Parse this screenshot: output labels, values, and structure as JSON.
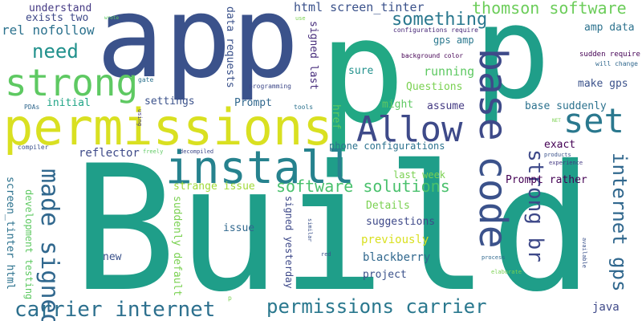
{
  "words": [
    {
      "text": "Build",
      "color": "#1f9e89",
      "vertical": false
    },
    {
      "text": "app",
      "color": "#3b528b",
      "vertical": false
    },
    {
      "text": "p",
      "color": "#22a884",
      "vertical": false
    },
    {
      "text": "p",
      "color": "#1f9e89",
      "vertical": false
    },
    {
      "text": "permissions",
      "color": "#d9e021",
      "vertical": false
    },
    {
      "text": "strong",
      "color": "#5ec962",
      "vertical": false
    },
    {
      "text": "install",
      "color": "#26828e",
      "vertical": false
    },
    {
      "text": "Allow",
      "color": "#3e4a89",
      "vertical": false
    },
    {
      "text": "base",
      "color": "#3e4a89",
      "vertical": true
    },
    {
      "text": "set",
      "color": "#2a788e",
      "vertical": false
    },
    {
      "text": "code",
      "color": "#3b528b",
      "vertical": true
    },
    {
      "text": "strong br",
      "color": "#3e4989",
      "vertical": true
    },
    {
      "text": "made signed",
      "color": "#31688e",
      "vertical": true
    },
    {
      "text": "carrier internet",
      "color": "#2d708e",
      "vertical": false
    },
    {
      "text": "permissions carrier",
      "color": "#2a788e",
      "vertical": false
    },
    {
      "text": "internet gps",
      "color": "#31688e",
      "vertical": true
    },
    {
      "text": "something",
      "color": "#2a788e",
      "vertical": false
    },
    {
      "text": "thomson software",
      "color": "#6ccd5a",
      "vertical": false
    },
    {
      "text": "need",
      "color": "#21918c",
      "vertical": false
    },
    {
      "text": "software solutions",
      "color": "#4ac16d",
      "vertical": false
    },
    {
      "text": "html screen_tinter",
      "color": "#3b528b",
      "vertical": false
    },
    {
      "text": "understand",
      "color": "#443983",
      "vertical": false
    },
    {
      "text": "exists two",
      "color": "#3e4989",
      "vertical": false
    },
    {
      "text": "rel nofollow",
      "color": "#2c728e",
      "vertical": false
    },
    {
      "text": "data requests",
      "color": "#3b528b",
      "vertical": true
    },
    {
      "text": "signed last",
      "color": "#472d7b",
      "vertical": true
    },
    {
      "text": "href",
      "color": "#5ec962",
      "vertical": true
    },
    {
      "text": "gps amp",
      "color": "#2a788e",
      "vertical": false
    },
    {
      "text": "amp data",
      "color": "#2c728e",
      "vertical": false
    },
    {
      "text": "make gps",
      "color": "#3b528b",
      "vertical": false
    },
    {
      "text": "running",
      "color": "#5ec962",
      "vertical": false
    },
    {
      "text": "sure",
      "color": "#21918c",
      "vertical": false
    },
    {
      "text": "Questions",
      "color": "#7ad151",
      "vertical": false
    },
    {
      "text": "might",
      "color": "#5ec962",
      "vertical": false
    },
    {
      "text": "assume",
      "color": "#443a83",
      "vertical": false
    },
    {
      "text": "base suddenly",
      "color": "#2c728e",
      "vertical": false
    },
    {
      "text": "initial",
      "color": "#20a486",
      "vertical": false
    },
    {
      "text": "settings",
      "color": "#3b528b",
      "vertical": false
    },
    {
      "text": "Prompt",
      "color": "#31688e",
      "vertical": false
    },
    {
      "text": "reflector",
      "color": "#3e4a89",
      "vertical": false
    },
    {
      "text": "phone configurations",
      "color": "#2c728e",
      "vertical": false
    },
    {
      "text": "exact",
      "color": "#440154",
      "vertical": false
    },
    {
      "text": "last week",
      "color": "#7ad151",
      "vertical": false
    },
    {
      "text": "Prompt rather",
      "color": "#440154",
      "vertical": false
    },
    {
      "text": "strange issue",
      "color": "#a0da39",
      "vertical": false
    },
    {
      "text": "Details",
      "color": "#7ad151",
      "vertical": false
    },
    {
      "text": "suggestions",
      "color": "#3e4989",
      "vertical": false
    },
    {
      "text": "previously",
      "color": "#d9e021",
      "vertical": false
    },
    {
      "text": "blackberry",
      "color": "#31688e",
      "vertical": false
    },
    {
      "text": "project",
      "color": "#3b528b",
      "vertical": false
    },
    {
      "text": "issue",
      "color": "#31688e",
      "vertical": false
    },
    {
      "text": "new",
      "color": "#3b528b",
      "vertical": false
    },
    {
      "text": "java",
      "color": "#3e4989",
      "vertical": false
    },
    {
      "text": "screen_tinter html",
      "color": "#2c728e",
      "vertical": true
    },
    {
      "text": "development testing",
      "color": "#5ec962",
      "vertical": true
    },
    {
      "text": "suddenly default",
      "color": "#7ad151",
      "vertical": true
    },
    {
      "text": "signed yesterday",
      "color": "#3e4989",
      "vertical": true
    },
    {
      "text": "configurations require",
      "color": "#482878",
      "vertical": false
    },
    {
      "text": "background color",
      "color": "#440154",
      "vertical": false
    },
    {
      "text": "sudden require",
      "color": "#440154",
      "vertical": false
    },
    {
      "text": "will change",
      "color": "#31688e",
      "vertical": false
    },
    {
      "text": "programming",
      "color": "#3e4989",
      "vertical": false
    },
    {
      "text": "tools",
      "color": "#2c728e",
      "vertical": false
    },
    {
      "text": "PDAs",
      "color": "#31688e",
      "vertical": false
    },
    {
      "text": "gate",
      "color": "#2c728e",
      "vertical": false
    },
    {
      "text": "compiler",
      "color": "#3b528b",
      "vertical": false
    },
    {
      "text": "freely",
      "color": "#5ec962",
      "vertical": false
    },
    {
      "text": "decompiled",
      "color": "#3e4989",
      "vertical": false
    },
    {
      "text": "products",
      "color": "#3b528b",
      "vertical": false
    },
    {
      "text": "experience",
      "color": "#443983",
      "vertical": false
    },
    {
      "text": "NET",
      "color": "#7ad151",
      "vertical": false
    },
    {
      "text": "use",
      "color": "#7ad151",
      "vertical": false
    },
    {
      "text": "wrote",
      "color": "#5ec962",
      "vertical": false
    },
    {
      "text": "red",
      "color": "#3b528b",
      "vertical": false
    },
    {
      "text": "process",
      "color": "#31688e",
      "vertical": false
    },
    {
      "text": "elaborate",
      "color": "#7ad151",
      "vertical": false
    },
    {
      "text": "using",
      "color": "#443983",
      "vertical": true
    },
    {
      "text": "similar",
      "color": "#3b528b",
      "vertical": true
    },
    {
      "text": "available",
      "color": "#3b528b",
      "vertical": true
    },
    {
      "text": "p",
      "color": "#7ad151",
      "vertical": false
    }
  ]
}
